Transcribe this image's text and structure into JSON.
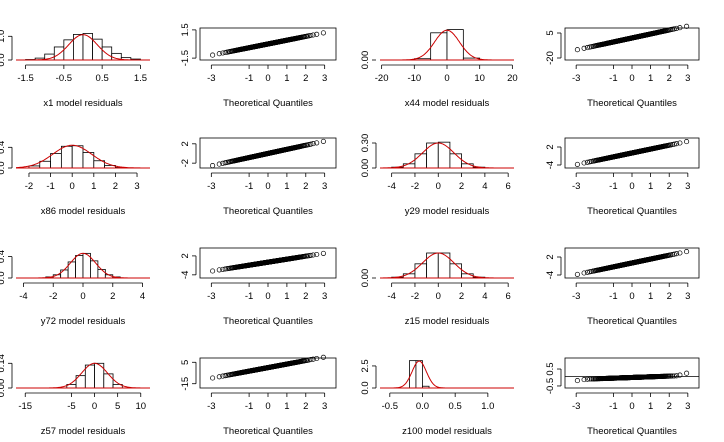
{
  "chart_data": [
    {
      "type": "histogram",
      "xlabel": "x1 model residuals",
      "xticks": [
        "-1.5",
        "-0.5",
        "0.5",
        "1.5"
      ],
      "xtick_values": [
        -1.5,
        -0.5,
        0.5,
        1.5
      ],
      "xlim": [
        -1.75,
        1.75
      ],
      "yticks": [
        "0.0",
        "1.0"
      ],
      "ytick_values": [
        0,
        1
      ],
      "ylim": [
        0,
        1.35
      ],
      "bins": [
        [
          -1.5,
          -1.25,
          0.02
        ],
        [
          -1.25,
          -1.0,
          0.08
        ],
        [
          -1.0,
          -0.75,
          0.25
        ],
        [
          -0.75,
          -0.5,
          0.55
        ],
        [
          -0.5,
          -0.25,
          0.85
        ],
        [
          -0.25,
          0,
          1.08
        ],
        [
          0,
          0.25,
          1.12
        ],
        [
          0.25,
          0.5,
          0.88
        ],
        [
          0.5,
          0.75,
          0.55
        ],
        [
          0.75,
          1.0,
          0.28
        ],
        [
          1.0,
          1.25,
          0.1
        ],
        [
          1.25,
          1.5,
          0.04
        ]
      ],
      "density": {
        "mu": 0,
        "sigma": 0.37,
        "peak": 1.07
      }
    },
    {
      "type": "qq",
      "xlabel": "Theoretical Quantiles",
      "xticks": [
        "-3",
        "-1",
        "0",
        "1",
        "2",
        "3"
      ],
      "xtick_values": [
        -3,
        -1,
        0,
        1,
        2,
        3
      ],
      "xlim": [
        -3.6,
        3.6
      ],
      "yticks": [
        "-1.5",
        "1.5"
      ],
      "ytick_values": [
        -1.5,
        1.5
      ],
      "ylim": [
        -1.7,
        1.7
      ],
      "sample_slope": 0.4,
      "sample_intercept": 0
    },
    {
      "type": "histogram",
      "xlabel": "x44 model residuals",
      "xticks": [
        "-20",
        "-10",
        "0",
        "10",
        "20"
      ],
      "xtick_values": [
        -20,
        -10,
        0,
        10,
        20
      ],
      "xlim": [
        -20.5,
        20.5
      ],
      "yticks": [
        "0.00"
      ],
      "ytick_values": [
        0
      ],
      "ylim": [
        0,
        0.1
      ],
      "bins": [
        [
          -10,
          -5,
          0.004
        ],
        [
          -5,
          0,
          0.085
        ],
        [
          0,
          5,
          0.095
        ],
        [
          5,
          10,
          0.006
        ]
      ],
      "density": {
        "mu": 0,
        "sigma": 3.8,
        "peak": 0.093
      }
    },
    {
      "type": "qq",
      "xlabel": "Theoretical Quantiles",
      "xticks": [
        "-3",
        "-1",
        "0",
        "1",
        "2",
        "3"
      ],
      "xtick_values": [
        -3,
        -1,
        0,
        1,
        2,
        3
      ],
      "xlim": [
        -3.6,
        3.6
      ],
      "yticks": [
        "-20",
        "5"
      ],
      "ytick_values": [
        -20,
        5
      ],
      "ylim": [
        -22,
        10
      ],
      "sample_slope": 4,
      "sample_intercept": 0
    },
    {
      "type": "histogram",
      "xlabel": "x86 model residuals",
      "xticks": [
        "-2",
        "-1",
        "0",
        "1",
        "2",
        "3"
      ],
      "xtick_values": [
        -2,
        -1,
        0,
        1,
        2,
        3
      ],
      "xlim": [
        -2.6,
        3.6
      ],
      "yticks": [
        "0.0",
        "0.4"
      ],
      "ytick_values": [
        0,
        0.4
      ],
      "ylim": [
        0,
        0.58
      ],
      "bins": [
        [
          -2,
          -1.5,
          0.04
        ],
        [
          -1.5,
          -1,
          0.13
        ],
        [
          -1,
          -0.5,
          0.28
        ],
        [
          -0.5,
          0,
          0.42
        ],
        [
          0,
          0.5,
          0.43
        ],
        [
          0.5,
          1,
          0.3
        ],
        [
          1,
          1.5,
          0.14
        ],
        [
          1.5,
          2,
          0.05
        ],
        [
          2,
          2.5,
          0.01
        ]
      ],
      "density": {
        "mu": 0,
        "sigma": 0.9,
        "peak": 0.44
      }
    },
    {
      "type": "qq",
      "xlabel": "Theoretical Quantiles",
      "xticks": [
        "-3",
        "-1",
        "0",
        "1",
        "2",
        "3"
      ],
      "xtick_values": [
        -3,
        -1,
        0,
        1,
        2,
        3
      ],
      "xlim": [
        -3.6,
        3.6
      ],
      "yticks": [
        "-2",
        "2"
      ],
      "ytick_values": [
        -2,
        2
      ],
      "ylim": [
        -3,
        3.2
      ],
      "sample_slope": 0.85,
      "sample_intercept": 0
    },
    {
      "type": "histogram",
      "xlabel": "y29 model residuals",
      "xticks": [
        "-4",
        "-2",
        "0",
        "2",
        "4",
        "6"
      ],
      "xtick_values": [
        -4,
        -2,
        0,
        2,
        4,
        6
      ],
      "xlim": [
        -5,
        6.5
      ],
      "yticks": [
        "0.00",
        "0.30"
      ],
      "ytick_values": [
        0,
        0.3
      ],
      "ylim": [
        0,
        0.36
      ],
      "bins": [
        [
          -4,
          -3,
          0.01
        ],
        [
          -3,
          -2,
          0.05
        ],
        [
          -2,
          -1,
          0.17
        ],
        [
          -1,
          0,
          0.3
        ],
        [
          0,
          1,
          0.31
        ],
        [
          1,
          2,
          0.17
        ],
        [
          2,
          3,
          0.05
        ],
        [
          3,
          4,
          0.01
        ]
      ],
      "density": {
        "mu": 0,
        "sigma": 1.35,
        "peak": 0.3
      }
    },
    {
      "type": "qq",
      "xlabel": "Theoretical Quantiles",
      "xticks": [
        "-3",
        "-1",
        "0",
        "1",
        "2",
        "3"
      ],
      "xtick_values": [
        -3,
        -1,
        0,
        1,
        2,
        3
      ],
      "xlim": [
        -3.6,
        3.6
      ],
      "yticks": [
        "-4",
        "2"
      ],
      "ytick_values": [
        -4,
        2
      ],
      "ylim": [
        -5,
        5
      ],
      "sample_slope": 1.3,
      "sample_intercept": 0
    },
    {
      "type": "histogram",
      "xlabel": "y72 model residuals",
      "xticks": [
        "-4",
        "-2",
        "0",
        "2",
        "4"
      ],
      "xtick_values": [
        -4,
        -2,
        0,
        2,
        4
      ],
      "xlim": [
        -4.5,
        4.5
      ],
      "yticks": [
        "0.0",
        "0.4"
      ],
      "ytick_values": [
        0,
        0.4
      ],
      "ylim": [
        0,
        0.56
      ],
      "bins": [
        [
          -2.5,
          -2,
          0.02
        ],
        [
          -2,
          -1.5,
          0.06
        ],
        [
          -1.5,
          -1,
          0.15
        ],
        [
          -1,
          -0.5,
          0.3
        ],
        [
          -0.5,
          0,
          0.42
        ],
        [
          0,
          0.5,
          0.46
        ],
        [
          0.5,
          1,
          0.32
        ],
        [
          1,
          1.5,
          0.16
        ],
        [
          1.5,
          2,
          0.06
        ],
        [
          2,
          2.5,
          0.02
        ]
      ],
      "density": {
        "mu": 0,
        "sigma": 0.85,
        "peak": 0.46
      }
    },
    {
      "type": "qq",
      "xlabel": "Theoretical Quantiles",
      "xticks": [
        "-3",
        "-1",
        "0",
        "1",
        "2",
        "3"
      ],
      "xtick_values": [
        -3,
        -1,
        0,
        1,
        2,
        3
      ],
      "xlim": [
        -3.6,
        3.6
      ],
      "yticks": [
        "-4",
        "2"
      ],
      "ytick_values": [
        -4,
        2
      ],
      "ylim": [
        -5,
        4.5
      ],
      "sample_slope": 0.95,
      "sample_intercept": 0
    },
    {
      "type": "histogram",
      "xlabel": "z15 model residuals",
      "xticks": [
        "-4",
        "-2",
        "0",
        "2",
        "4",
        "6"
      ],
      "xtick_values": [
        -4,
        -2,
        0,
        2,
        4,
        6
      ],
      "xlim": [
        -5,
        6.5
      ],
      "yticks": [
        "0.00"
      ],
      "ytick_values": [
        0
      ],
      "ylim": [
        0,
        0.36
      ],
      "bins": [
        [
          -4,
          -3,
          0.01
        ],
        [
          -3,
          -2,
          0.05
        ],
        [
          -2,
          -1,
          0.17
        ],
        [
          -1,
          0,
          0.3
        ],
        [
          0,
          1,
          0.3
        ],
        [
          1,
          2,
          0.17
        ],
        [
          2,
          3,
          0.05
        ],
        [
          3,
          4,
          0.01
        ]
      ],
      "density": {
        "mu": 0,
        "sigma": 1.35,
        "peak": 0.3
      }
    },
    {
      "type": "qq",
      "xlabel": "Theoretical Quantiles",
      "xticks": [
        "-3",
        "-1",
        "0",
        "1",
        "2",
        "3"
      ],
      "xtick_values": [
        -3,
        -1,
        0,
        1,
        2,
        3
      ],
      "xlim": [
        -3.6,
        3.6
      ],
      "yticks": [
        "-4",
        "2"
      ],
      "ytick_values": [
        -4,
        2
      ],
      "ylim": [
        -5,
        5
      ],
      "sample_slope": 1.3,
      "sample_intercept": 0
    },
    {
      "type": "histogram",
      "xlabel": "z57 model residuals",
      "xticks": [
        "-15",
        "-5",
        "0",
        "5",
        "10"
      ],
      "xtick_values": [
        -15,
        -5,
        0,
        5,
        10
      ],
      "xlim": [
        -17,
        12
      ],
      "yticks": [
        "0.00",
        "0.14"
      ],
      "ytick_values": [
        0,
        0.14
      ],
      "ylim": [
        0,
        0.17
      ],
      "bins": [
        [
          -6,
          -4,
          0.02
        ],
        [
          -4,
          -2,
          0.07
        ],
        [
          -2,
          0,
          0.13
        ],
        [
          0,
          2,
          0.14
        ],
        [
          2,
          4,
          0.08
        ],
        [
          4,
          6,
          0.02
        ]
      ],
      "density": {
        "mu": 0,
        "sigma": 2.8,
        "peak": 0.14
      }
    },
    {
      "type": "qq",
      "xlabel": "Theoretical Quantiles",
      "xticks": [
        "-3",
        "-1",
        "0",
        "1",
        "2",
        "3"
      ],
      "xtick_values": [
        -3,
        -1,
        0,
        1,
        2,
        3
      ],
      "xlim": [
        -3.6,
        3.6
      ],
      "yticks": [
        "-15",
        "5"
      ],
      "ytick_values": [
        -15,
        5
      ],
      "ylim": [
        -19,
        9
      ],
      "sample_slope": 3.3,
      "sample_intercept": 0
    },
    {
      "type": "histogram",
      "xlabel": "z100 model residuals",
      "xticks": [
        "-0.5",
        "0.0",
        "0.5",
        "1.0"
      ],
      "xtick_values": [
        -0.5,
        0,
        0.5,
        1
      ],
      "xlim": [
        -0.65,
        1.4
      ],
      "yticks": [
        "0.0",
        "2.5"
      ],
      "ytick_values": [
        0,
        2.5
      ],
      "ylim": [
        0,
        3.4
      ],
      "bins": [
        [
          -0.2,
          -0.1,
          3.1
        ],
        [
          -0.1,
          0,
          3.1
        ],
        [
          0,
          0.1,
          0.2
        ]
      ],
      "density": {
        "mu": -0.05,
        "sigma": 0.11,
        "peak": 3.05
      }
    },
    {
      "type": "qq",
      "xlabel": "Theoretical Quantiles",
      "xticks": [
        "-3",
        "-1",
        "0",
        "1",
        "2",
        "3"
      ],
      "xtick_values": [
        -3,
        -1,
        0,
        1,
        2,
        3
      ],
      "xlim": [
        -3.6,
        3.6
      ],
      "yticks": [
        "-0.5",
        "0.5"
      ],
      "ytick_values": [
        -0.5,
        0.5
      ],
      "ylim": [
        -0.62,
        1.15
      ],
      "sample_slope": 0.04,
      "sample_intercept": 0,
      "tail": true
    }
  ],
  "colors": {
    "bars": "#ffffff",
    "edges": "#000000",
    "density": "#cc0000",
    "points": "#000000"
  }
}
